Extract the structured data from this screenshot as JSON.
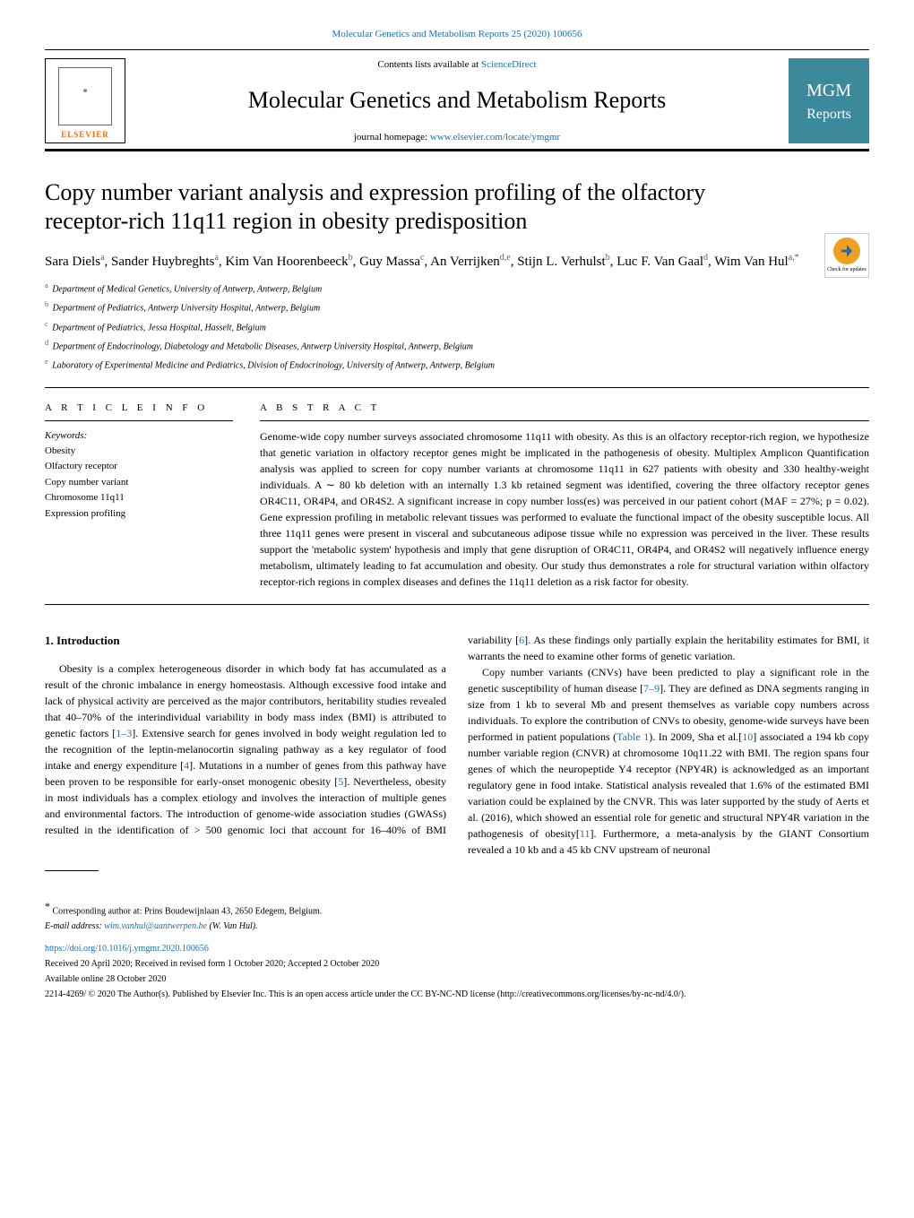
{
  "top_citation": "Molecular Genetics and Metabolism Reports 25 (2020) 100656",
  "header": {
    "contents_prefix": "Contents lists available at ",
    "contents_link": "ScienceDirect",
    "journal_name": "Molecular Genetics and Metabolism Reports",
    "homepage_prefix": "journal homepage: ",
    "homepage_link": "www.elsevier.com/locate/ymgmr",
    "elsevier": "ELSEVIER",
    "logo_mgm": "MGM",
    "logo_reports": "Reports"
  },
  "article": {
    "title": "Copy number variant analysis and expression profiling of the olfactory receptor-rich 11q11 region in obesity predisposition",
    "check_updates": "Check for updates",
    "authors_html": "Sara Diels<sup>a</sup>, Sander Huybreghts<sup>a</sup>, Kim Van Hoorenbeeck<sup>b</sup>, Guy Massa<sup>c</sup>, An Verrijken<sup>d,e</sup>, Stijn L. Verhulst<sup>b</sup>, Luc F. Van Gaal<sup>d</sup>, Wim Van Hul<sup>a,*</sup>",
    "affiliations": [
      {
        "sup": "a",
        "text": "Department of Medical Genetics, University of Antwerp, Antwerp, Belgium"
      },
      {
        "sup": "b",
        "text": "Department of Pediatrics, Antwerp University Hospital, Antwerp, Belgium"
      },
      {
        "sup": "c",
        "text": "Department of Pediatrics, Jessa Hospital, Hasselt, Belgium"
      },
      {
        "sup": "d",
        "text": "Department of Endocrinology, Diabetology and Metabolic Diseases, Antwerp University Hospital, Antwerp, Belgium"
      },
      {
        "sup": "e",
        "text": "Laboratory of Experimental Medicine and Pediatrics, Division of Endocrinology, University of Antwerp, Antwerp, Belgium"
      }
    ]
  },
  "article_info": {
    "heading": "A R T I C L E  I N F O",
    "keywords_label": "Keywords:",
    "keywords": [
      "Obesity",
      "Olfactory receptor",
      "Copy number variant",
      "Chromosome 11q11",
      "Expression profiling"
    ]
  },
  "abstract": {
    "heading": "A B S T R A C T",
    "text": "Genome-wide copy number surveys associated chromosome 11q11 with obesity. As this is an olfactory receptor-rich region, we hypothesize that genetic variation in olfactory receptor genes might be implicated in the pathogenesis of obesity. Multiplex Amplicon Quantification analysis was applied to screen for copy number variants at chromosome 11q11 in 627 patients with obesity and 330 healthy-weight individuals. A ∼ 80 kb deletion with an internally 1.3 kb retained segment was identified, covering the three olfactory receptor genes OR4C11, OR4P4, and OR4S2. A significant increase in copy number loss(es) was perceived in our patient cohort (MAF = 27%; p = 0.02). Gene expression profiling in metabolic relevant tissues was performed to evaluate the functional impact of the obesity susceptible locus. All three 11q11 genes were present in visceral and subcutaneous adipose tissue while no expression was perceived in the liver. These results support the 'metabolic system' hypothesis and imply that gene disruption of OR4C11, OR4P4, and OR4S2 will negatively influence energy metabolism, ultimately leading to fat accumulation and obesity. Our study thus demonstrates a role for structural variation within olfactory receptor-rich regions in complex diseases and defines the 11q11 deletion as a risk factor for obesity."
  },
  "body": {
    "section_heading": "1. Introduction",
    "p1": "Obesity is a complex heterogeneous disorder in which body fat has accumulated as a result of the chronic imbalance in energy homeostasis. Although excessive food intake and lack of physical activity are perceived as the major contributors, heritability studies revealed that 40–70% of the interindividual variability in body mass index (BMI) is attributed to genetic factors [",
    "ref1": "1–3",
    "p1b": "]. Extensive search for genes involved in body weight regulation led to the recognition of the leptin-melanocortin signaling pathway as a key regulator of food intake and energy expenditure [",
    "ref2": "4",
    "p1c": "]. Mutations in a number of genes from this pathway have been proven to be responsible for early-onset monogenic obesity [",
    "ref3": "5",
    "p1d": "]. Nevertheless, obesity in most individuals has a complex etiology and involves the interaction of multiple genes and environmental factors. The introduction of genome-wide association studies (GWASs) resulted in the identification of > 500 genomic loci that account for 16–40% of BMI variability [",
    "ref4": "6",
    "p1e": "]. As these findings only partially explain the heritability estimates for BMI, it warrants the need to examine other forms of genetic variation.",
    "p2a": "Copy number variants (CNVs) have been predicted to play a significant role in the genetic susceptibility of human disease [",
    "ref5": "7–9",
    "p2b": "]. They are defined as DNA segments ranging in size from 1 kb to several Mb and present themselves as variable copy numbers across individuals. To explore the contribution of CNVs to obesity, genome-wide surveys have been performed in patient populations (",
    "tab1": "Table 1",
    "p2c": "). In 2009, Sha et al.[",
    "ref6": "10",
    "p2d": "] associated a 194 kb copy number variable region (CNVR) at chromosome 10q11.22 with BMI. The region spans four genes of which the neuropeptide Y4 receptor (NPY4R) is acknowledged as an important regulatory gene in food intake. Statistical analysis revealed that 1.6% of the estimated BMI variation could be explained by the CNVR. This was later supported by the study of Aerts et al. (2016), which showed an essential role for genetic and structural NPY4R variation in the pathogenesis of obesity[",
    "ref7": "11",
    "p2e": "]. Furthermore, a meta-analysis by the GIANT Consortium revealed a 10 kb and a 45 kb CNV upstream of neuronal"
  },
  "footer": {
    "corresp_marker": "*",
    "corresp_text": "Corresponding author at: Prins Boudewijnlaan 43, 2650 Edegem, Belgium.",
    "email_label": "E-mail address: ",
    "email": "wim.vanhul@uantwerpen.be",
    "email_suffix": " (W. Van Hul).",
    "doi": "https://doi.org/10.1016/j.ymgmr.2020.100656",
    "dates": "Received 20 April 2020; Received in revised form 1 October 2020; Accepted 2 October 2020",
    "available": "Available online 28 October 2020",
    "license": "2214-4269/ © 2020 The Author(s). Published by Elsevier Inc. This is an open access article under the CC BY-NC-ND license (http://creativecommons.org/licenses/by-nc-nd/4.0/)."
  }
}
